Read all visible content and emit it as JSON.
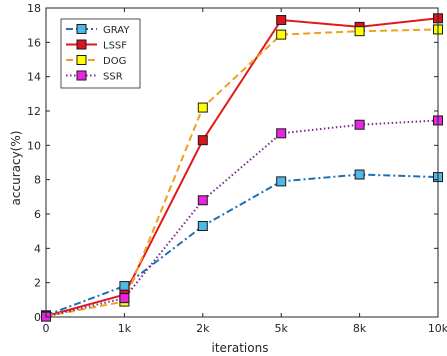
{
  "chart_data": {
    "type": "line",
    "xlabel": "iterations",
    "ylabel": "accuracy(%)",
    "categories": [
      "0",
      "1k",
      "2k",
      "5k",
      "8k",
      "10k"
    ],
    "ylim": [
      0,
      18
    ],
    "yticks": [
      0,
      2,
      4,
      6,
      8,
      10,
      12,
      14,
      16,
      18
    ],
    "grid": false,
    "legend_position": "top-left",
    "series": [
      {
        "name": "GRAY",
        "values": [
          0.1,
          1.8,
          5.3,
          7.9,
          8.3,
          8.15
        ],
        "line_color": "#1f6fb5",
        "marker_color": "#4fb8e8",
        "dash": "dashdot"
      },
      {
        "name": "LSSF",
        "values": [
          0.05,
          1.3,
          10.3,
          17.3,
          16.9,
          17.4
        ],
        "line_color": "#e01a1a",
        "marker_color": "#d8141c",
        "dash": "solid"
      },
      {
        "name": "DOG",
        "values": [
          0.05,
          0.9,
          12.2,
          16.45,
          16.65,
          16.75
        ],
        "line_color": "#f0a020",
        "marker_color": "#ffff00",
        "dash": "dashed"
      },
      {
        "name": "SSR",
        "values": [
          0.02,
          1.1,
          6.8,
          10.7,
          11.2,
          11.45
        ],
        "line_color": "#7b2a8e",
        "marker_color": "#e626e0",
        "dash": "dotted"
      }
    ]
  }
}
